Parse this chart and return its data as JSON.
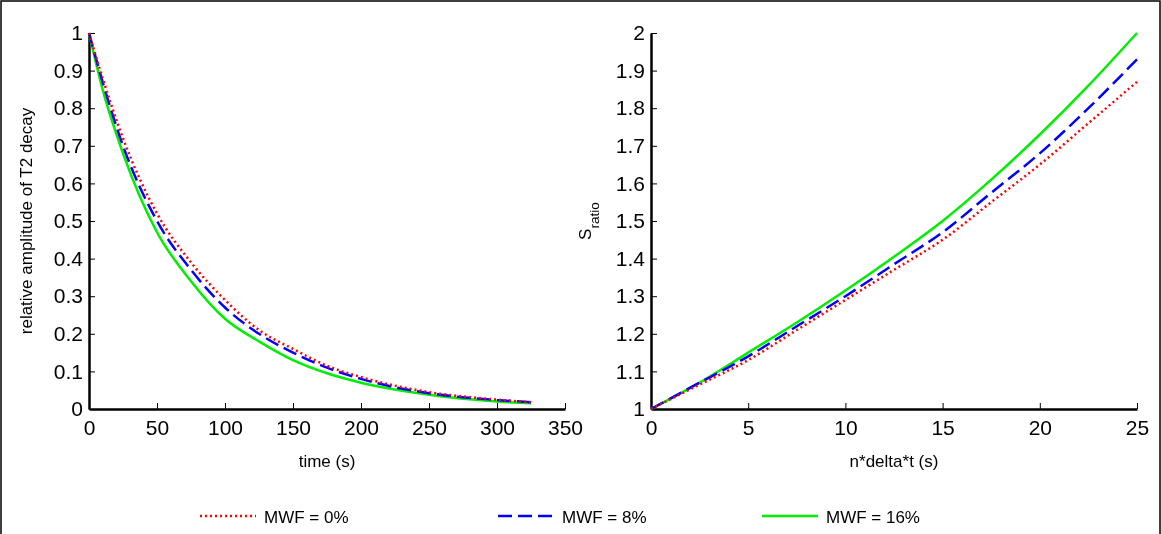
{
  "chart_data": [
    {
      "type": "line",
      "xlabel": "time (s)",
      "ylabel": "relative amplitude of T2 decay",
      "xlim": [
        0,
        350
      ],
      "xticks": [
        0,
        50,
        100,
        150,
        200,
        250,
        300,
        350
      ],
      "ylim": [
        0,
        1
      ],
      "yticks": [
        0,
        0.1,
        0.2,
        0.3,
        0.4,
        0.5,
        0.6,
        0.7,
        0.8,
        0.9,
        1
      ],
      "legend": "bottom",
      "grid": false,
      "x": [
        0,
        10,
        25,
        50,
        75,
        100,
        125,
        150,
        175,
        200,
        250,
        300,
        325
      ],
      "series": [
        {
          "name": "MWF = 0%",
          "color": "#ff0000",
          "line_style": "dotted",
          "values": [
            1,
            0.88,
            0.72,
            0.52,
            0.39,
            0.29,
            0.21,
            0.16,
            0.115,
            0.085,
            0.045,
            0.025,
            0.018
          ]
        },
        {
          "name": "MWF = 8%",
          "color": "#0000ff",
          "line_style": "dashed",
          "values": [
            1,
            0.87,
            0.7,
            0.5,
            0.37,
            0.27,
            0.2,
            0.15,
            0.11,
            0.08,
            0.042,
            0.024,
            0.018
          ]
        },
        {
          "name": "MWF = 16%",
          "color": "#00ee00",
          "line_style": "solid",
          "values": [
            1,
            0.85,
            0.68,
            0.47,
            0.34,
            0.24,
            0.18,
            0.13,
            0.095,
            0.07,
            0.038,
            0.02,
            0.015
          ]
        }
      ]
    },
    {
      "type": "line",
      "xlabel": "n*delta*t (s)",
      "ylabel": "S$_{ratio}$",
      "xlim": [
        0,
        25
      ],
      "xticks": [
        0,
        5,
        10,
        15,
        20,
        25
      ],
      "ylim": [
        1,
        2
      ],
      "yticks": [
        1,
        1.1,
        1.2,
        1.3,
        1.4,
        1.5,
        1.6,
        1.7,
        1.8,
        1.9,
        2
      ],
      "grid": false,
      "x": [
        0,
        2.5,
        5,
        7.5,
        10,
        12.5,
        15,
        17.5,
        20,
        22.5,
        25
      ],
      "series": [
        {
          "color": "#ff0000",
          "line_style": "dotted",
          "values": [
            1,
            1.065,
            1.13,
            1.21,
            1.29,
            1.37,
            1.45,
            1.55,
            1.65,
            1.76,
            1.87
          ]
        },
        {
          "color": "#0000ff",
          "line_style": "dashed",
          "values": [
            1,
            1.07,
            1.14,
            1.22,
            1.3,
            1.385,
            1.47,
            1.575,
            1.68,
            1.8,
            1.93
          ]
        },
        {
          "color": "#00ee00",
          "line_style": "solid",
          "values": [
            1,
            1.07,
            1.15,
            1.23,
            1.315,
            1.405,
            1.5,
            1.61,
            1.73,
            1.86,
            2
          ]
        }
      ]
    }
  ]
}
